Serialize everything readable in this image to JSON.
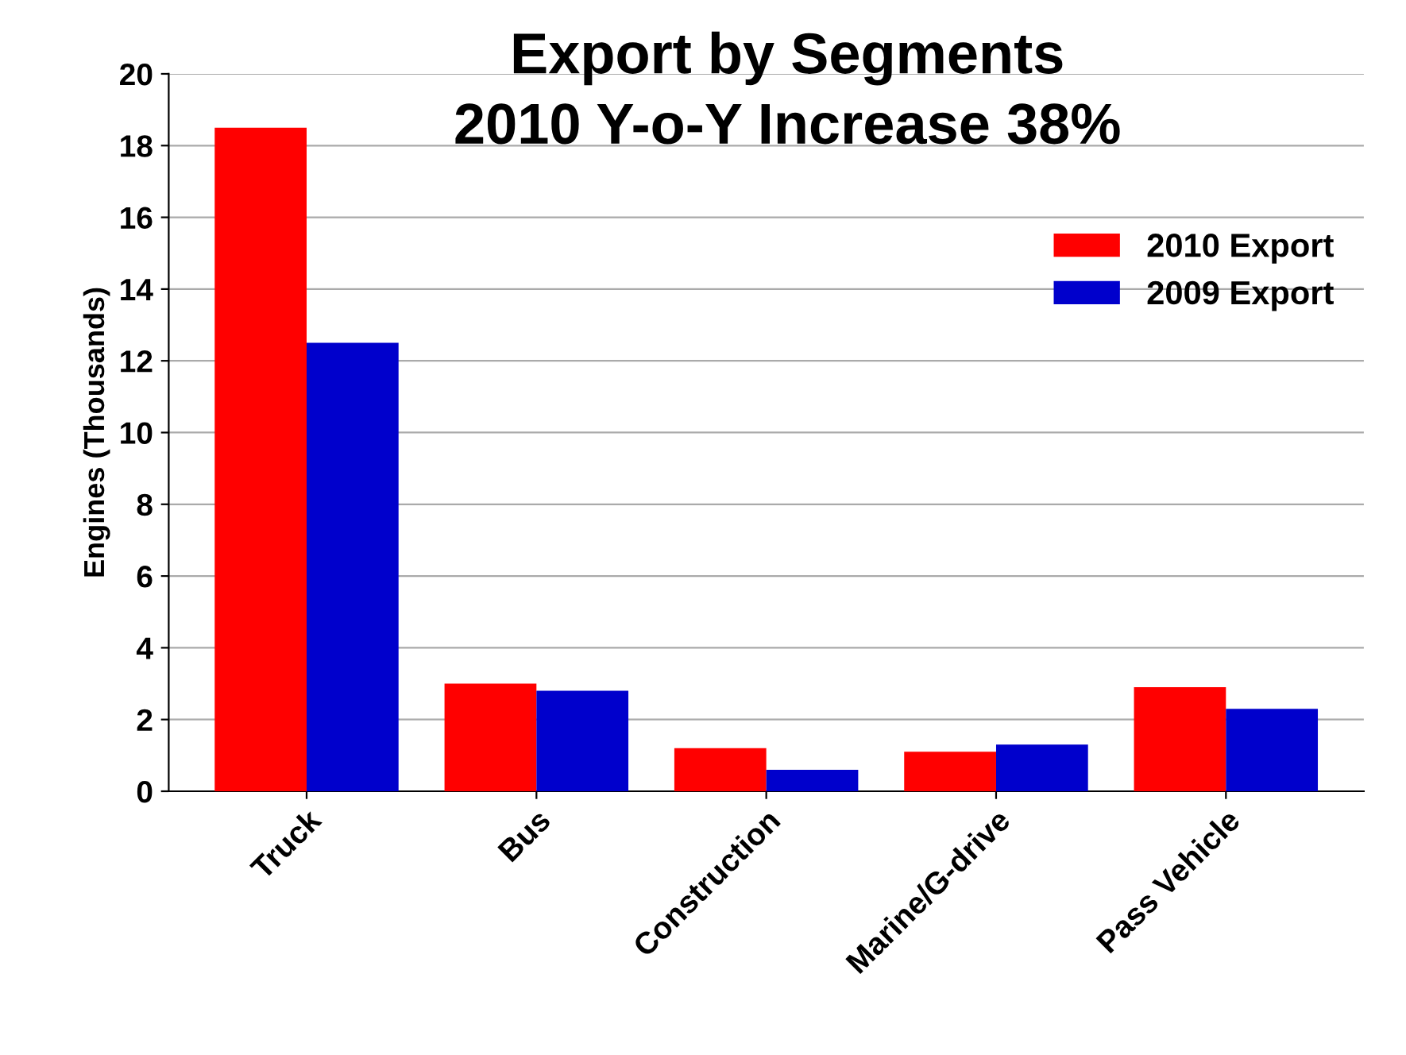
{
  "chart_data": {
    "type": "bar",
    "title": "Export by Segments\n2010 Y-o-Y Increase 38%",
    "ylabel": "Engines (Thousands)",
    "categories": [
      "Truck",
      "Bus",
      "Construction",
      "Marine/G-drive",
      "Pass Vehicle"
    ],
    "series": [
      {
        "name": "2010 Export",
        "color": "#ff0000",
        "values": [
          18.5,
          3.0,
          1.2,
          1.1,
          2.9
        ]
      },
      {
        "name": "2009 Export",
        "color": "#0000cc",
        "values": [
          12.5,
          2.8,
          0.6,
          1.3,
          2.3
        ]
      }
    ],
    "ylim": [
      0,
      20
    ],
    "yticks": [
      0,
      2,
      4,
      6,
      8,
      10,
      12,
      14,
      16,
      18,
      20
    ],
    "grid": "y",
    "legend": "top right"
  }
}
